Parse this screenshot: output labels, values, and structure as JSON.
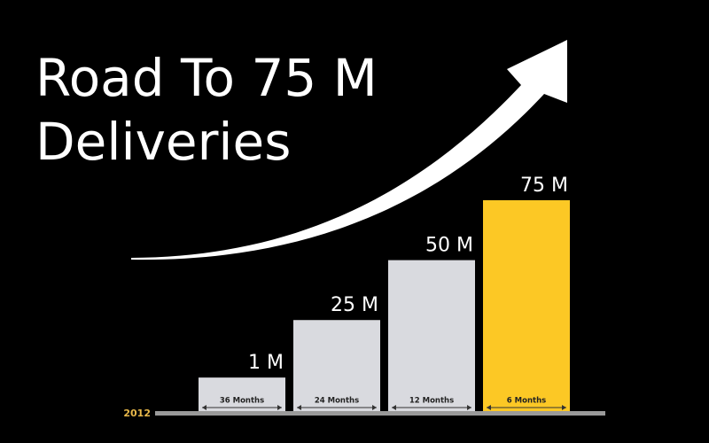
{
  "chart_data": {
    "type": "bar",
    "title": "Road To 75 M Deliveries",
    "start_label": "2012",
    "categories": [
      "36 Months",
      "24 Months",
      "12 Months",
      "6 Months"
    ],
    "values": [
      1,
      25,
      50,
      75
    ],
    "value_labels": [
      "1 M",
      "25 M",
      "50 M",
      "75 M"
    ],
    "colors": [
      "#d9dadf",
      "#d9dadf",
      "#d9dadf",
      "#fcc825"
    ],
    "ylim": [
      -13,
      75
    ]
  }
}
